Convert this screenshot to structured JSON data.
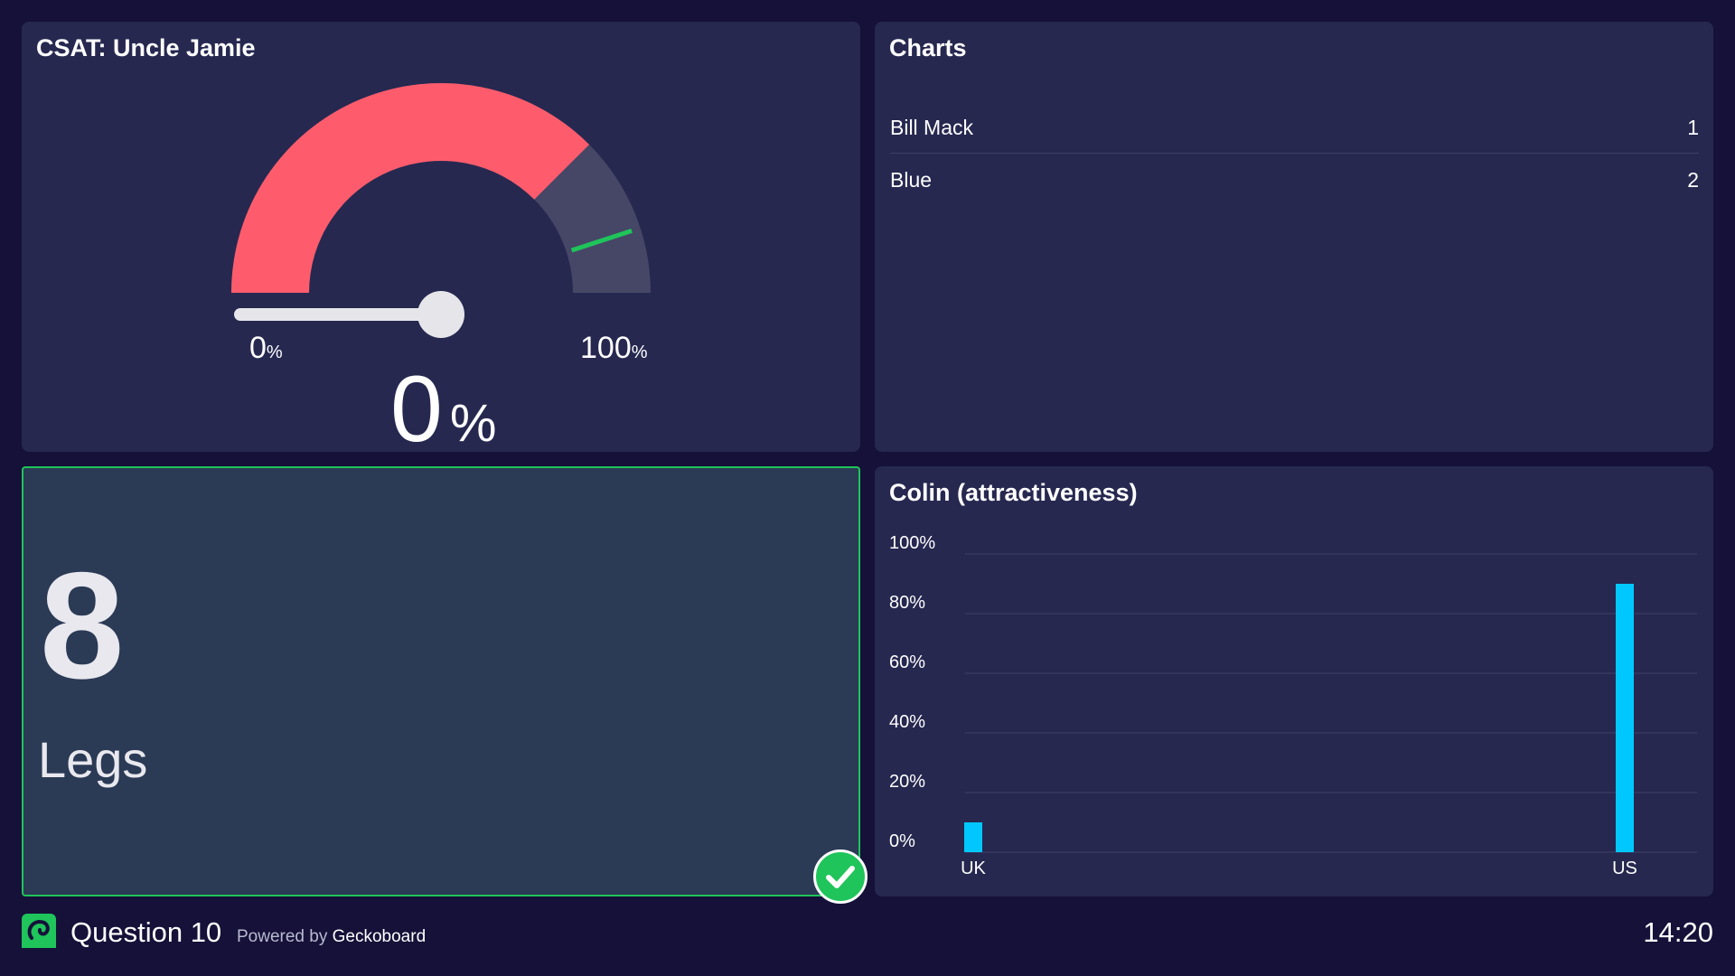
{
  "colors": {
    "background": "#151139",
    "widget": "#262850",
    "gauge_fill": "#fe5c6c",
    "gauge_track": "#464666",
    "gauge_target": "#1fc45a",
    "bar": "#00c8ff",
    "success": "#1fc45a"
  },
  "csat": {
    "title": "CSAT: Uncle Jamie",
    "min_label": "0",
    "max_label": "100",
    "unit": "%",
    "value": "0",
    "red_fraction": 0.75,
    "target_fraction": 0.9,
    "needle_fraction": 0
  },
  "list": {
    "title": "Charts",
    "rows": [
      {
        "label": "Bill Mack",
        "value": "1"
      },
      {
        "label": "Blue",
        "value": "2"
      }
    ]
  },
  "number": {
    "value": "8",
    "label": "Legs",
    "status_icon": "check-icon"
  },
  "chart_data": {
    "type": "bar",
    "title": "Colin (attractiveness)",
    "categories": [
      "UK",
      "US"
    ],
    "values": [
      10,
      90
    ],
    "ylim": [
      0,
      100
    ],
    "yticks": [
      "0%",
      "20%",
      "40%",
      "60%",
      "80%",
      "100%"
    ],
    "grid": true,
    "xlabel": "",
    "ylabel": ""
  },
  "footer": {
    "logo_icon": "geckoboard-logo-icon",
    "title": "Question 10",
    "powered_prefix": "Powered by",
    "powered_brand": "Geckoboard",
    "clock": "14:20"
  }
}
